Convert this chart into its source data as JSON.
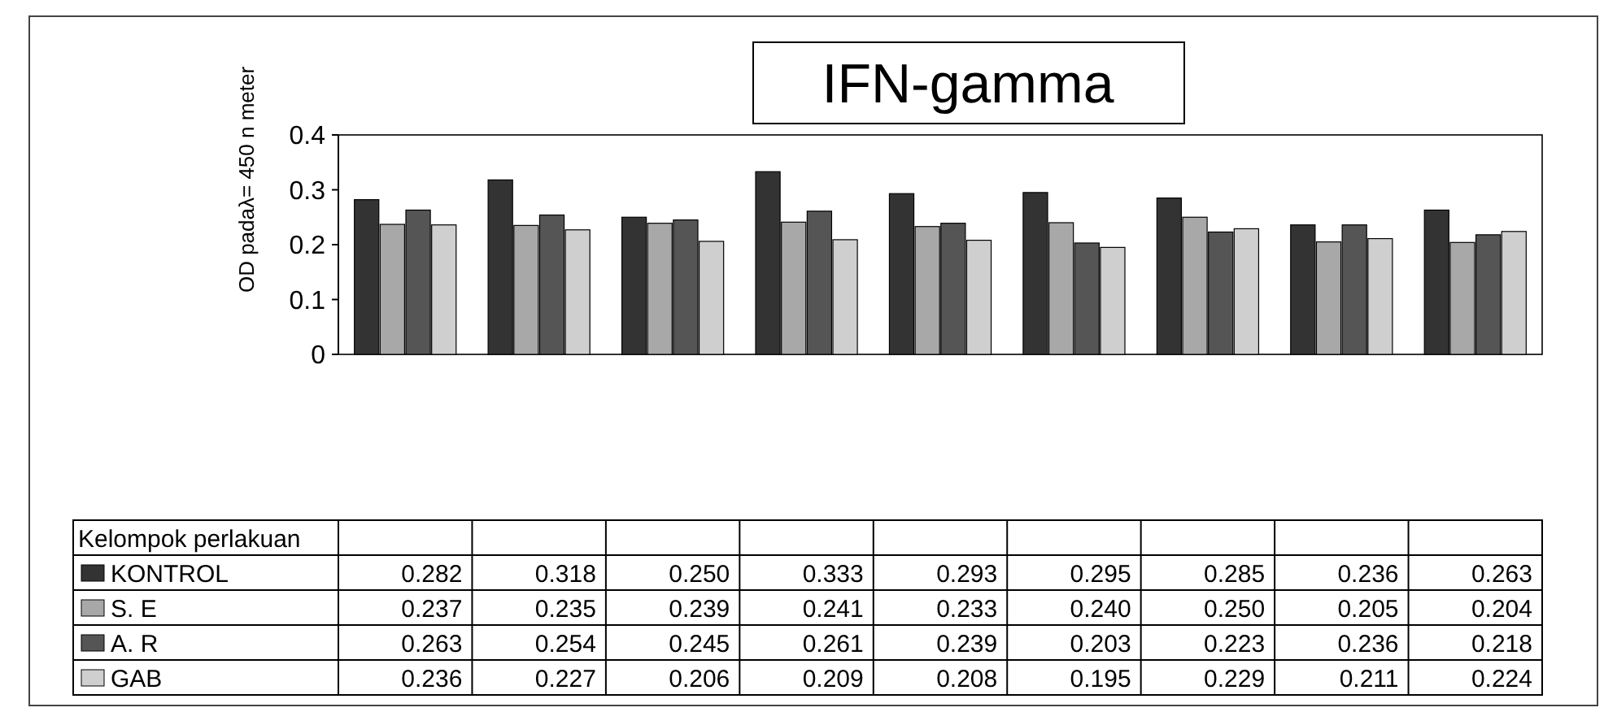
{
  "chart_data": {
    "type": "bar",
    "title": "IFN-gamma",
    "ylabel": "OD padaλ= 450 n meter",
    "annotations": [
      "Kelompok perlakuan"
    ],
    "categories": [
      null,
      null,
      null,
      null,
      null,
      null,
      null,
      null,
      null
    ],
    "series": [
      {
        "name": "KONTROL",
        "color": "#333333",
        "values": [
          0.282,
          0.318,
          0.25,
          0.333,
          0.293,
          0.295,
          0.285,
          0.236,
          0.263
        ],
        "value_labels": [
          "0.282",
          "0.318",
          "0.250",
          "0.333",
          "0.293",
          "0.295",
          "0.285",
          "0.236",
          "0.263"
        ]
      },
      {
        "name": "S. E",
        "color": "#a8a8a8",
        "values": [
          0.237,
          0.235,
          0.239,
          0.241,
          0.233,
          0.24,
          0.25,
          0.205,
          0.204
        ],
        "value_labels": [
          "0.237",
          "0.235",
          "0.239",
          "0.241",
          "0.233",
          "0.240",
          "0.250",
          "0.205",
          "0.204"
        ]
      },
      {
        "name": "A. R",
        "color": "#555555",
        "values": [
          0.263,
          0.254,
          0.245,
          0.261,
          0.239,
          0.203,
          0.223,
          0.236,
          0.218
        ],
        "value_labels": [
          "0.263",
          "0.254",
          "0.245",
          "0.261",
          "0.239",
          "0.203",
          "0.223",
          "0.236",
          "0.218"
        ]
      },
      {
        "name": "GAB",
        "color": "#cfcfcf",
        "values": [
          0.236,
          0.227,
          0.206,
          0.209,
          0.208,
          0.195,
          0.229,
          0.211,
          0.224
        ],
        "value_labels": [
          "0.236",
          "0.227",
          "0.206",
          "0.209",
          "0.208",
          "0.195",
          "0.229",
          "0.211",
          "0.224"
        ]
      }
    ],
    "ylim": [
      0,
      0.4
    ],
    "yticks": [
      0,
      0.1,
      0.2,
      0.3,
      0.4
    ],
    "grid": false,
    "legend": "bottom"
  }
}
